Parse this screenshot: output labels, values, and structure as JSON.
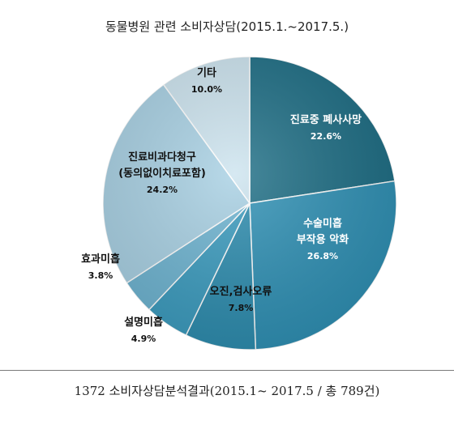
{
  "chart_data": {
    "type": "pie",
    "title": "동물병원 관련 소비자상담(2015.1.~2017.5.)",
    "slices": [
      {
        "name_lines": [
          "진료중 폐사사망"
        ],
        "value": 22.6,
        "value_label": "22.6%",
        "color": "#1f6f86",
        "text_color": "#ffffff"
      },
      {
        "name_lines": [
          "수술미흡",
          "부작용 악화"
        ],
        "value": 26.8,
        "value_label": "26.8%",
        "color": "#3192b6",
        "text_color": "#ffffff"
      },
      {
        "name_lines": [
          "오진,검사오류"
        ],
        "value": 7.8,
        "value_label": "7.8%",
        "color": "#2f8eb0",
        "text_color": "#111111"
      },
      {
        "name_lines": [
          "설명미흡"
        ],
        "value": 4.9,
        "value_label": "4.9%",
        "color": "#3d9dc0",
        "text_color": "#111111"
      },
      {
        "name_lines": [
          "효과미흡"
        ],
        "value": 3.8,
        "value_label": "3.8%",
        "color": "#6fb5d2",
        "text_color": "#111111"
      },
      {
        "name_lines": [
          "진료비과다청구",
          "(동의없이치료포함)"
        ],
        "value": 24.2,
        "value_label": "24.2%",
        "color": "#a9d1e4",
        "text_color": "#111111"
      },
      {
        "name_lines": [
          "기타"
        ],
        "value": 10.0,
        "value_label": "10.0%",
        "color": "#cde4ef",
        "text_color": "#111111"
      }
    ]
  },
  "caption": "1372 소비자상담분석결과(2015.1~ 2017.5 / 총 789건)"
}
